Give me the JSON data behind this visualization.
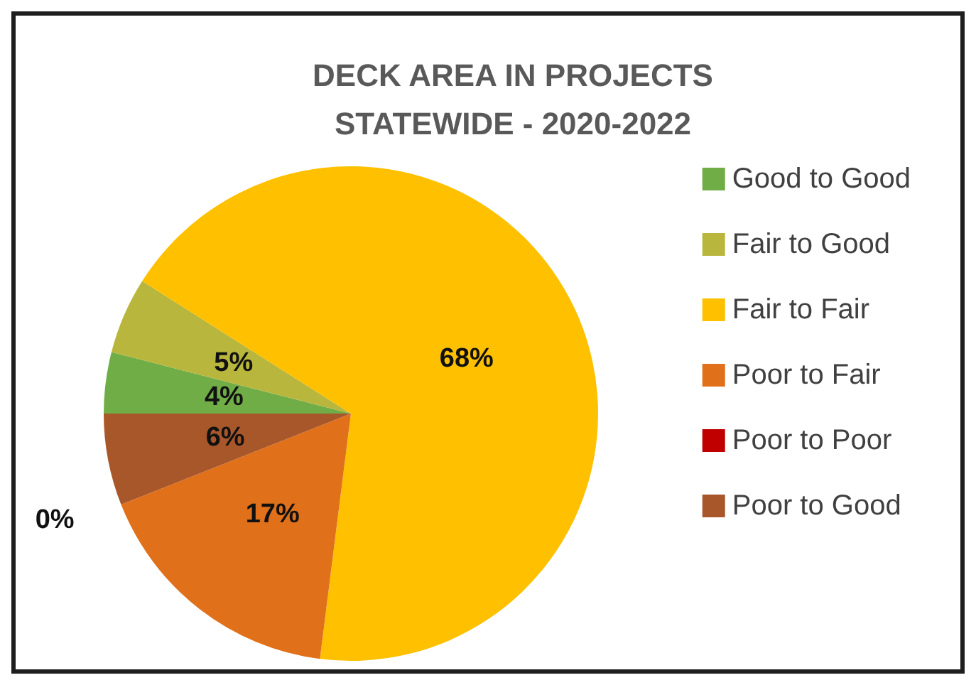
{
  "chart_data": {
    "type": "pie",
    "title": "DECK AREA IN PROJECTS\nSTATEWIDE - 2020-2022",
    "categories": [
      "Good to Good",
      "Fair to Good",
      "Fair to Fair",
      "Poor to Fair",
      "Poor to Poor",
      "Poor to Good"
    ],
    "values": [
      4,
      5,
      68,
      17,
      0,
      6
    ],
    "value_labels": [
      "4%",
      "5%",
      "68%",
      "17%",
      "0%",
      "6%"
    ],
    "colors": [
      "#70ad47",
      "#b8b63c",
      "#ffc000",
      "#e0701a",
      "#c00000",
      "#a8572a"
    ],
    "legend": "right"
  }
}
